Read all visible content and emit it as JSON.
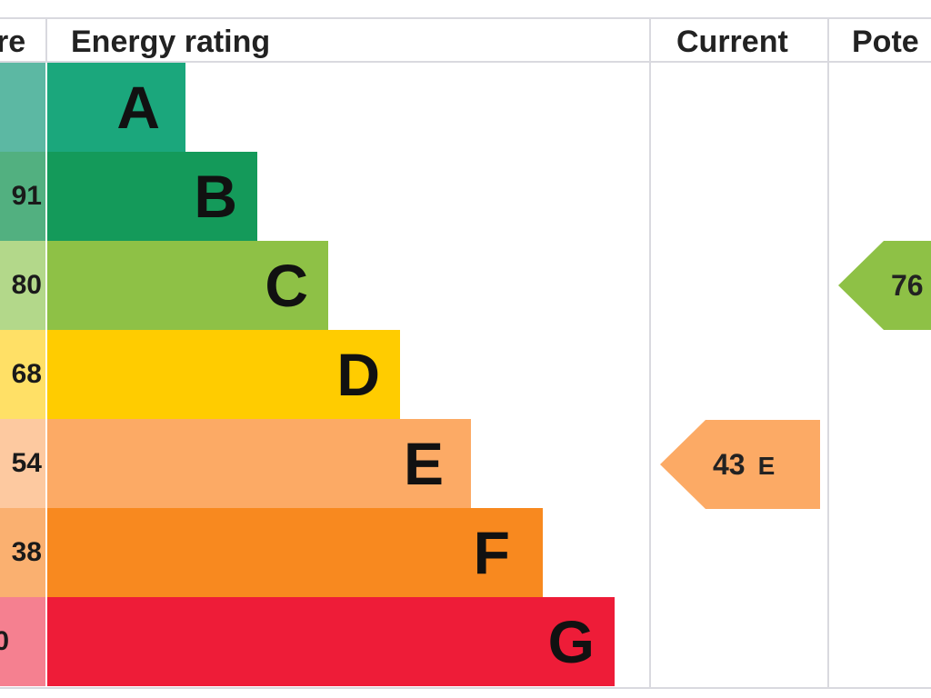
{
  "header": {
    "score_label": "re",
    "rating_label": "Energy rating",
    "current_label": "Current",
    "potential_label": "Pote"
  },
  "chart_data": {
    "type": "bar",
    "title": "",
    "bands": [
      {
        "letter": "A",
        "score_text": "",
        "color": "#1ba77c",
        "score_color": "#5cb8a3"
      },
      {
        "letter": "B",
        "score_text": "91",
        "color": "#149a5a",
        "score_color": "#52b080"
      },
      {
        "letter": "C",
        "score_text": "80",
        "color": "#8ec146",
        "score_color": "#b3d88a"
      },
      {
        "letter": "D",
        "score_text": "68",
        "color": "#ffcc00",
        "score_color": "#ffe066"
      },
      {
        "letter": "E",
        "score_text": "54",
        "color": "#fcaa65",
        "score_color": "#fdc9a0"
      },
      {
        "letter": "F",
        "score_text": "38",
        "color": "#f8891f",
        "score_color": "#fab070"
      },
      {
        "letter": "G",
        "score_text": "0",
        "color": "#ee1c38",
        "score_color": "#f58090"
      }
    ],
    "current": {
      "value": 43,
      "band": "E",
      "color": "#fcaa65"
    },
    "potential": {
      "value": 76,
      "band": "C",
      "color": "#8ec146"
    }
  }
}
